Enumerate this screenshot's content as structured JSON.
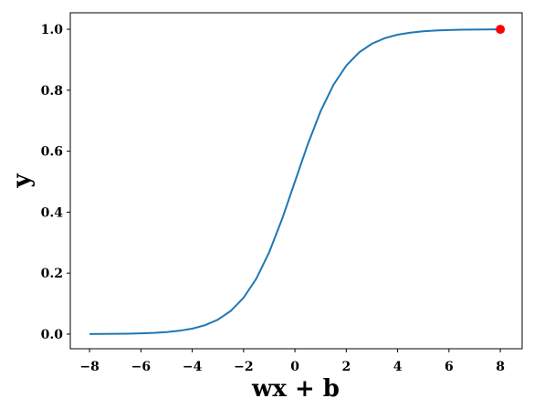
{
  "chart_data": {
    "type": "line",
    "xlabel": "wx + b",
    "ylabel": "y",
    "xlim": [
      -8.75,
      8.85
    ],
    "ylim": [
      -0.048,
      1.054
    ],
    "xticks": [
      {
        "value": -8,
        "label": "−8"
      },
      {
        "value": -6,
        "label": "−6"
      },
      {
        "value": -4,
        "label": "−4"
      },
      {
        "value": -2,
        "label": "−2"
      },
      0,
      2,
      4,
      6,
      8
    ],
    "yticks": [
      {
        "value": 0,
        "label": "0.0"
      },
      0.2,
      0.4,
      0.6,
      0.8,
      {
        "value": 1,
        "label": "1.0"
      }
    ],
    "grid": false,
    "series": [
      {
        "color": "#1f77b4",
        "style": "line",
        "x": [
          -8,
          -7.5,
          -7,
          -6.5,
          -6,
          -5.5,
          -5,
          -4.5,
          -4,
          -3.5,
          -3,
          -2.5,
          -2,
          -1.5,
          -1,
          -0.5,
          0,
          0.5,
          1,
          1.5,
          2,
          2.5,
          3,
          3.5,
          4,
          4.5,
          5,
          5.5,
          6,
          6.5,
          7,
          7.5,
          8
        ],
        "values": [
          0.0003,
          0.0006,
          0.0009,
          0.0015,
          0.0025,
          0.0041,
          0.0067,
          0.011,
          0.018,
          0.0293,
          0.0474,
          0.0759,
          0.1192,
          0.1824,
          0.2689,
          0.3775,
          0.5,
          0.6225,
          0.7311,
          0.8176,
          0.8808,
          0.9241,
          0.9526,
          0.9707,
          0.982,
          0.989,
          0.9933,
          0.9959,
          0.9975,
          0.9985,
          0.9991,
          0.9994,
          0.9997
        ]
      },
      {
        "color": "#ff0000",
        "style": "marker",
        "x": [
          8
        ],
        "values": [
          0.9997
        ]
      }
    ]
  }
}
